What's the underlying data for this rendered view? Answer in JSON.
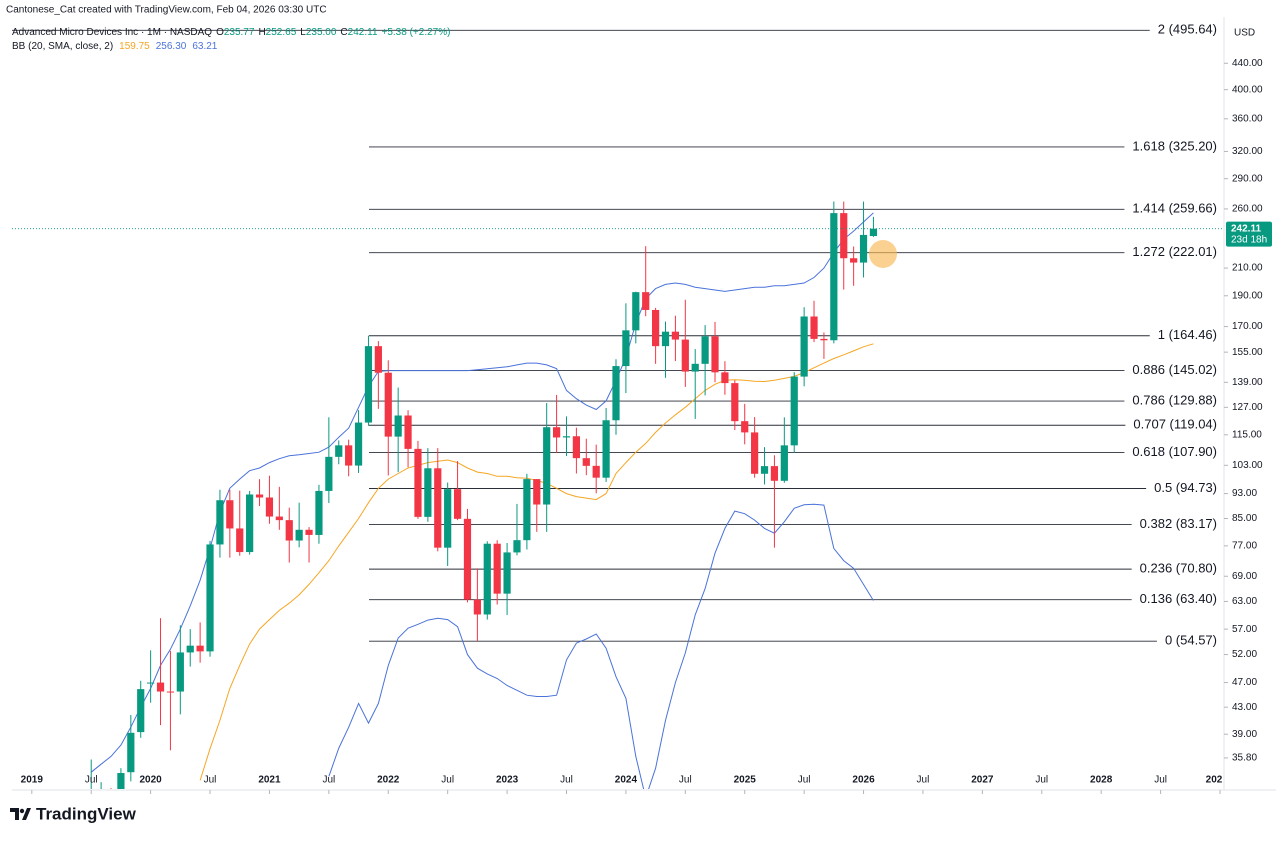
{
  "header": {
    "credit": "Cantonese_Cat created with TradingView.com, Feb 04, 2026 03:30 UTC",
    "symbol": "Advanced Micro Devices Inc · 1M · NASDAQ",
    "ohlc": [
      {
        "key": "O",
        "value": "235.77"
      },
      {
        "key": "H",
        "value": "252.65"
      },
      {
        "key": "L",
        "value": "235.00"
      },
      {
        "key": "C",
        "value": "242.11"
      }
    ],
    "change": "+5.38 (+2.27%)",
    "bb": {
      "label": "BB (20, SMA, close, 2)",
      "values": [
        "159.75",
        "256.30",
        "63.21"
      ]
    },
    "currency": "USD"
  },
  "footer": {
    "brand": "TradingView"
  },
  "chart_data": {
    "type": "candlestick",
    "log_scale": true,
    "grid": false,
    "up_color": "#089981",
    "down_color": "#f23645",
    "xlim": [
      "2018-11",
      "2029-01"
    ],
    "ylim": [
      32,
      520
    ],
    "x": [
      "2019-07",
      "2019-08",
      "2019-09",
      "2019-10",
      "2019-11",
      "2019-12",
      "2020-01",
      "2020-02",
      "2020-03",
      "2020-04",
      "2020-05",
      "2020-06",
      "2020-07",
      "2020-08",
      "2020-09",
      "2020-10",
      "2020-11",
      "2020-12",
      "2021-01",
      "2021-02",
      "2021-03",
      "2021-04",
      "2021-05",
      "2021-06",
      "2021-07",
      "2021-08",
      "2021-09",
      "2021-10",
      "2021-11",
      "2021-12",
      "2022-01",
      "2022-02",
      "2022-03",
      "2022-04",
      "2022-05",
      "2022-06",
      "2022-07",
      "2022-08",
      "2022-09",
      "2022-10",
      "2022-11",
      "2022-12",
      "2023-01",
      "2023-02",
      "2023-03",
      "2023-04",
      "2023-05",
      "2023-06",
      "2023-07",
      "2023-08",
      "2023-09",
      "2023-10",
      "2023-11",
      "2023-12",
      "2024-01",
      "2024-02",
      "2024-03",
      "2024-04",
      "2024-05",
      "2024-06",
      "2024-07",
      "2024-08",
      "2024-09",
      "2024-10",
      "2024-11",
      "2024-12",
      "2025-01",
      "2025-02",
      "2025-03",
      "2025-04",
      "2025-05",
      "2025-06",
      "2025-07",
      "2025-08",
      "2025-09",
      "2025-10",
      "2025-11",
      "2025-12",
      "2026-01",
      "2026-02"
    ],
    "open": [
      30.4,
      30.5,
      31.4,
      29.0,
      34.0,
      39.3,
      46.9,
      47.0,
      45.5,
      45.5,
      52.4,
      53.7,
      52.6,
      77.4,
      90.8,
      82.0,
      75.3,
      92.7,
      91.7,
      85.6,
      84.5,
      78.5,
      81.6,
      80.1,
      93.9,
      106.2,
      110.7,
      102.9,
      120.2,
      158.4,
      143.9,
      114.25,
      123.3,
      109.3,
      85.5,
      101.9,
      76.5,
      94.5,
      84.9,
      63.4,
      60.1,
      77.6,
      64.8,
      75.2,
      78.6,
      98.0,
      89.4,
      118.2,
      113.9,
      114.4,
      105.7,
      102.8,
      98.5,
      121.2,
      147.4,
      167.7,
      192.5,
      180.5,
      158.4,
      166.9,
      162.2,
      144.5,
      148.6,
      164.1,
      144.1,
      138.6,
      120.8,
      116.0,
      99.9,
      102.7,
      97.4,
      110.7,
      141.9,
      176.3,
      162.6,
      161.8,
      256.1,
      217.6,
      214.2,
      235.77
    ],
    "high": [
      35.6,
      32.8,
      32.1,
      34.5,
      41.8,
      47.3,
      52.8,
      59.3,
      52.7,
      57.8,
      57.0,
      58.4,
      78.4,
      94.3,
      94.3,
      94.0,
      93.9,
      97.98,
      99.2,
      95.3,
      88.4,
      90.0,
      82.4,
      96.0,
      122.5,
      112.7,
      113.0,
      125.7,
      164.5,
      161.3,
      150.5,
      136.4,
      125.7,
      112.5,
      109.6,
      109.6,
      96.8,
      104.6,
      88.0,
      71.0,
      78.3,
      78.6,
      77.8,
      89.6,
      99.9,
      98.0,
      129.0,
      132.8,
      122.9,
      118.0,
      113.4,
      111.0,
      126.7,
      151.1,
      184.9,
      192.8,
      227.3,
      181.9,
      173.1,
      176.8,
      187.3,
      156.7,
      170.9,
      172.9,
      150.0,
      140.0,
      128.6,
      122.6,
      110.0,
      106.8,
      122.5,
      144.2,
      182.3,
      186.6,
      166.4,
      267.1,
      267.0,
      227.0,
      266.96,
      252.65
    ],
    "low": [
      29.7,
      27.7,
      27.4,
      27.4,
      32.9,
      38.5,
      43.7,
      40.3,
      36.8,
      41.9,
      49.8,
      50.5,
      51.6,
      73.8,
      73.8,
      74.3,
      74.6,
      88.9,
      83.4,
      81.6,
      72.5,
      76.6,
      72.5,
      77.6,
      89.9,
      103.4,
      99.0,
      100.2,
      118.8,
      126.3,
      99.3,
      100.5,
      102.3,
      84.9,
      84.0,
      75.5,
      71.6,
      84.5,
      62.8,
      54.6,
      59.0,
      62.3,
      60.0,
      74.4,
      76.0,
      81.0,
      81.0,
      107.7,
      106.5,
      100.0,
      99.4,
      93.1,
      97.0,
      115.0,
      133.7,
      160.0,
      176.5,
      148.6,
      141.3,
      150.1,
      136.7,
      121.8,
      132.6,
      139.0,
      132.9,
      117.0,
      111.1,
      98.5,
      96.1,
      76.5,
      96.7,
      107.7,
      137.0,
      160.7,
      151.3,
      160.0,
      194.3,
      197.0,
      203.0,
      235.0
    ],
    "close": [
      30.5,
      31.5,
      29.0,
      33.9,
      39.2,
      45.9,
      47.0,
      45.5,
      45.48,
      52.4,
      53.7,
      52.6,
      77.4,
      90.8,
      82.0,
      75.3,
      92.7,
      91.7,
      85.6,
      84.5,
      78.5,
      81.6,
      80.1,
      93.9,
      106.2,
      110.7,
      102.9,
      120.2,
      158.4,
      143.9,
      114.25,
      123.3,
      109.3,
      85.5,
      101.9,
      76.5,
      94.5,
      84.9,
      63.4,
      60.1,
      77.6,
      64.8,
      75.2,
      78.6,
      98.0,
      89.4,
      118.2,
      113.9,
      114.4,
      105.7,
      102.8,
      98.5,
      121.2,
      147.4,
      167.7,
      192.5,
      180.5,
      158.4,
      166.9,
      162.2,
      144.5,
      148.6,
      164.1,
      144.1,
      138.6,
      120.8,
      116.0,
      99.9,
      102.7,
      97.4,
      110.7,
      141.9,
      176.3,
      162.6,
      161.8,
      256.1,
      217.6,
      214.2,
      236.7,
      242.11
    ],
    "bands": [
      {
        "color": "#f5a623",
        "values": [
          null,
          null,
          null,
          null,
          null,
          null,
          null,
          null,
          null,
          null,
          null,
          33,
          37,
          41,
          46,
          50,
          54,
          57,
          59,
          61,
          62.6,
          64.5,
          67,
          69.9,
          73,
          77,
          80.9,
          85,
          90,
          94.8,
          98,
          100,
          102,
          103,
          104,
          104.5,
          105,
          104,
          102,
          100.5,
          100,
          99,
          99,
          98.5,
          98.3,
          97.5,
          96.5,
          94.8,
          93,
          92,
          91.5,
          91,
          93,
          100,
          104,
          108,
          111.5,
          116,
          120,
          123.6,
          127,
          131,
          135,
          138,
          140,
          140.3,
          140,
          139.5,
          139.4,
          140,
          141,
          142,
          144,
          146.5,
          149,
          151.5,
          153.5,
          155.7,
          158,
          159.75
        ]
      },
      {
        "color": "#4a72d9",
        "values": [
          34,
          35,
          36,
          37.5,
          40,
          43,
          46,
          50,
          53,
          57,
          62,
          68,
          76.3,
          87,
          94.8,
          98,
          101,
          102,
          104,
          105.5,
          106.6,
          107,
          107.5,
          108,
          110,
          114,
          117.8,
          127,
          137,
          144.6,
          145,
          145,
          145,
          145,
          145,
          145,
          145,
          145,
          145,
          145.5,
          146,
          146.5,
          147,
          148,
          149,
          149,
          148,
          146,
          135,
          131,
          128,
          126,
          130,
          140,
          152,
          172,
          188,
          195,
          198,
          199,
          198,
          196,
          195,
          194,
          193,
          194,
          195,
          196,
          196,
          197,
          197,
          198,
          199,
          203,
          210,
          222,
          233,
          240,
          248,
          256.3
        ]
      },
      {
        "color": "#4a72d9",
        "values": [
          null,
          null,
          null,
          null,
          null,
          null,
          null,
          null,
          null,
          null,
          null,
          null,
          null,
          null,
          null,
          null,
          null,
          null,
          null,
          null,
          null,
          null,
          null,
          null,
          33.5,
          37.1,
          40,
          43.6,
          40.6,
          43.6,
          50,
          55.2,
          57.2,
          58,
          58.9,
          59.3,
          59.0,
          57.5,
          52,
          49.5,
          48.5,
          47.7,
          46.5,
          45.7,
          44.9,
          44.7,
          44.7,
          44.9,
          51,
          54.2,
          55,
          56.0,
          53.2,
          48,
          44.4,
          36,
          31,
          34.5,
          41,
          47,
          52.3,
          60,
          66,
          75,
          82,
          87.3,
          86.5,
          84.5,
          82,
          80.6,
          84,
          88.2,
          89.3,
          89.5,
          89.2,
          76.3,
          73,
          71.0,
          67,
          63.21
        ]
      }
    ],
    "fib_levels": [
      {
        "value": 495.64,
        "label": "2 (495.64)"
      },
      {
        "value": 325.2,
        "label": "1.618 (325.20)"
      },
      {
        "value": 259.66,
        "label": "1.414 (259.66)"
      },
      {
        "value": 222.01,
        "label": "1.272 (222.01)"
      },
      {
        "value": 164.46,
        "label": "1 (164.46)"
      },
      {
        "value": 145.02,
        "label": "0.886 (145.02)"
      },
      {
        "value": 129.88,
        "label": "0.786 (129.88)"
      },
      {
        "value": 119.04,
        "label": "0.707 (119.04)"
      },
      {
        "value": 107.9,
        "label": "0.618 (107.90)"
      },
      {
        "value": 94.73,
        "label": "0.5 (94.73)"
      },
      {
        "value": 83.17,
        "label": "0.382 (83.17)"
      },
      {
        "value": 70.8,
        "label": "0.236 (70.80)"
      },
      {
        "value": 63.4,
        "label": "0.136 (63.40)"
      },
      {
        "value": 54.57,
        "label": "0 (54.57)"
      }
    ],
    "last_price": {
      "value": 242.11,
      "countdown": "23d 18h",
      "color": "#089981"
    },
    "yticks": [
      {
        "value": 440,
        "label": "440.00"
      },
      {
        "value": 400,
        "label": "400.00"
      },
      {
        "value": 360,
        "label": "360.00"
      },
      {
        "value": 320,
        "label": "320.00"
      },
      {
        "value": 290,
        "label": "290.00"
      },
      {
        "value": 260,
        "label": "260.00"
      },
      {
        "value": 210,
        "label": "210.00"
      },
      {
        "value": 190,
        "label": "190.00"
      },
      {
        "value": 170,
        "label": "170.00"
      },
      {
        "value": 155,
        "label": "155.00"
      },
      {
        "value": 139,
        "label": "139.00"
      },
      {
        "value": 127,
        "label": "127.00"
      },
      {
        "value": 115,
        "label": "115.00"
      },
      {
        "value": 103,
        "label": "103.00"
      },
      {
        "value": 93,
        "label": "93.00"
      },
      {
        "value": 85,
        "label": "85.00"
      },
      {
        "value": 77,
        "label": "77.00"
      },
      {
        "value": 69,
        "label": "69.00"
      },
      {
        "value": 63,
        "label": "63.00"
      },
      {
        "value": 57,
        "label": "57.00"
      },
      {
        "value": 52,
        "label": "52.00"
      },
      {
        "value": 47,
        "label": "47.00"
      },
      {
        "value": 43,
        "label": "43.00"
      },
      {
        "value": 39,
        "label": "39.00"
      },
      {
        "value": 35.8,
        "label": "35.80"
      }
    ],
    "xticks": [
      {
        "value": "2019-01",
        "label": "2019"
      },
      {
        "value": "2019-07",
        "label": "Jul"
      },
      {
        "value": "2020-01",
        "label": "2020"
      },
      {
        "value": "2020-07",
        "label": "Jul"
      },
      {
        "value": "2021-01",
        "label": "2021"
      },
      {
        "value": "2021-07",
        "label": "Jul"
      },
      {
        "value": "2022-01",
        "label": "2022"
      },
      {
        "value": "2022-07",
        "label": "Jul"
      },
      {
        "value": "2023-01",
        "label": "2023"
      },
      {
        "value": "2023-07",
        "label": "Jul"
      },
      {
        "value": "2024-01",
        "label": "2024"
      },
      {
        "value": "2024-07",
        "label": "Jul"
      },
      {
        "value": "2025-01",
        "label": "2025"
      },
      {
        "value": "2025-07",
        "label": "Jul"
      },
      {
        "value": "2026-01",
        "label": "2026"
      },
      {
        "value": "2026-07",
        "label": "Jul"
      },
      {
        "value": "2027-01",
        "label": "2027"
      },
      {
        "value": "2027-07",
        "label": "Jul"
      },
      {
        "value": "2028-01",
        "label": "2028"
      },
      {
        "value": "2028-07",
        "label": "Jul"
      },
      {
        "value": "2029-01",
        "label": "202"
      }
    ]
  }
}
